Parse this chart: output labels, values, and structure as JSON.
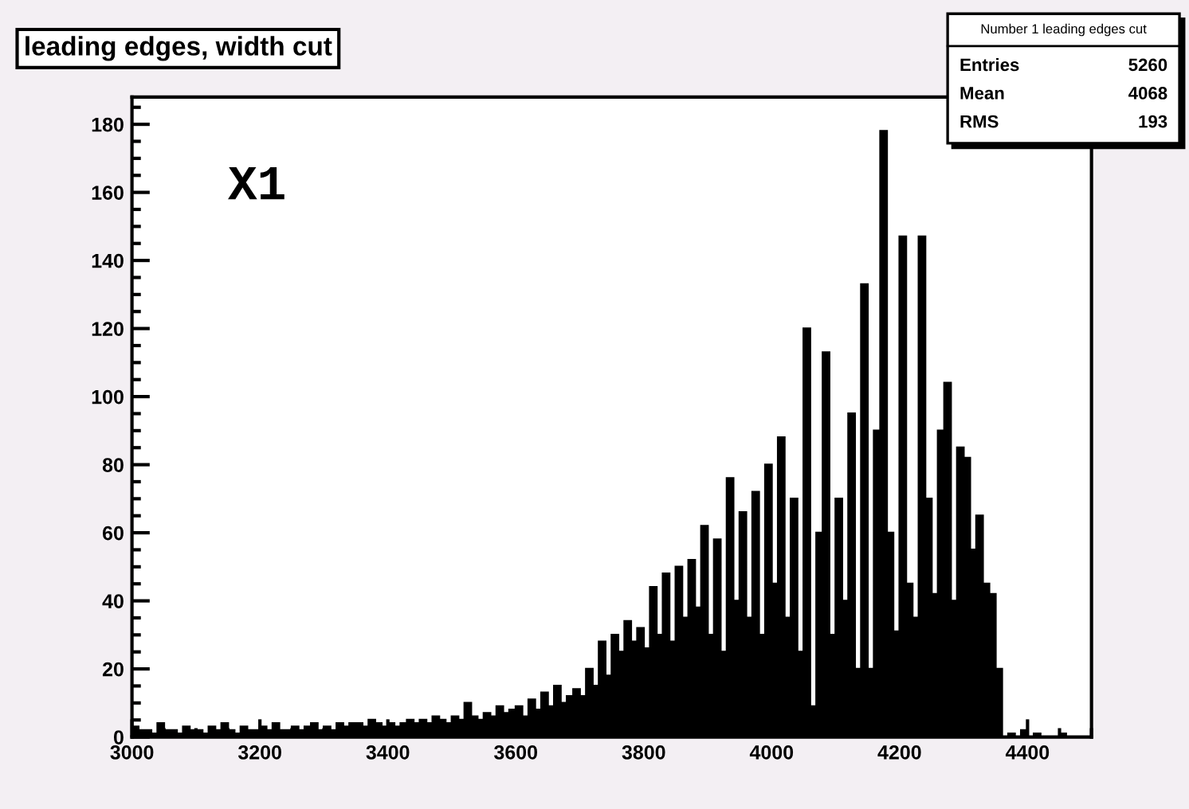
{
  "chart_data": {
    "type": "histogram",
    "title": "leading edges, width cut",
    "bins": [
      3000,
      3010,
      3020,
      3030,
      3040,
      3050,
      3060,
      3070,
      3080,
      3090,
      3100,
      3110,
      3120,
      3130,
      3140,
      3150,
      3160,
      3170,
      3180,
      3190,
      3200,
      3210,
      3220,
      3230,
      3240,
      3250,
      3260,
      3270,
      3280,
      3290,
      3300,
      3310,
      3320,
      3330,
      3340,
      3350,
      3360,
      3370,
      3380,
      3390,
      3400,
      3410,
      3420,
      3430,
      3440,
      3450,
      3460,
      3470,
      3480,
      3490,
      3500,
      3510,
      3520,
      3530,
      3540,
      3550,
      3560,
      3570,
      3580,
      3590,
      3600,
      3610,
      3620,
      3630,
      3640,
      3650,
      3660,
      3670,
      3680,
      3690,
      3700,
      3710,
      3720,
      3730,
      3740,
      3750,
      3760,
      3770,
      3780,
      3790,
      3800,
      3810,
      3820,
      3830,
      3840,
      3850,
      3860,
      3870,
      3880,
      3890,
      3900,
      3910,
      3920,
      3930,
      3940,
      3950,
      3960,
      3970,
      3980,
      3990,
      4000,
      4010,
      4020,
      4030,
      4040,
      4050,
      4060,
      4070,
      4080,
      4090,
      4100,
      4110,
      4120,
      4130,
      4140,
      4150,
      4160,
      4170,
      4180,
      4190,
      4200,
      4210,
      4220,
      4230,
      4240,
      4250,
      4260,
      4270,
      4280,
      4290,
      4300,
      4310,
      4320,
      4330,
      4340,
      4350,
      4360,
      4370,
      4380,
      4390,
      4400,
      4410,
      4420,
      4430,
      4440,
      4450,
      4460,
      4470,
      4480,
      4490,
      4500
    ],
    "values": [
      3,
      2,
      2,
      1,
      4,
      2,
      2,
      1,
      3,
      2,
      2,
      1,
      3,
      2,
      4,
      2,
      1,
      3,
      2,
      2,
      3,
      2,
      4,
      2,
      2,
      3,
      2,
      3,
      4,
      2,
      3,
      2,
      4,
      3,
      4,
      4,
      3,
      5,
      4,
      3,
      4,
      3,
      4,
      5,
      4,
      5,
      4,
      6,
      5,
      4,
      6,
      5,
      10,
      6,
      5,
      7,
      6,
      9,
      7,
      8,
      9,
      6,
      11,
      8,
      13,
      9,
      15,
      10,
      12,
      14,
      12,
      20,
      15,
      28,
      18,
      30,
      25,
      34,
      28,
      32,
      26,
      44,
      30,
      48,
      28,
      50,
      35,
      52,
      38,
      62,
      30,
      58,
      25,
      76,
      40,
      66,
      35,
      72,
      30,
      80,
      45,
      88,
      35,
      70,
      25,
      120,
      9,
      60,
      113,
      30,
      70,
      40,
      95,
      20,
      133,
      20,
      90,
      178,
      60,
      31,
      147,
      45,
      35,
      147,
      70,
      42,
      90,
      104,
      40,
      85,
      82,
      55,
      65,
      45,
      42,
      20,
      0,
      1,
      0,
      2,
      0,
      1,
      0,
      0,
      0,
      1,
      0,
      0,
      0,
      0
    ],
    "color": "#000000",
    "xlim": [
      3000,
      4500
    ],
    "ylim": [
      0,
      188
    ],
    "xticks": [
      3000,
      3200,
      3400,
      3600,
      3800,
      4000,
      4200,
      4400
    ],
    "yticks": [
      0,
      20,
      40,
      60,
      80,
      100,
      120,
      140,
      160,
      180
    ],
    "grid": false,
    "legend": false,
    "annotations": [
      "X1",
      "Number 1 leading edges cut",
      "Entries",
      "5260",
      "Mean",
      "4068",
      "RMS",
      "193"
    ]
  }
}
